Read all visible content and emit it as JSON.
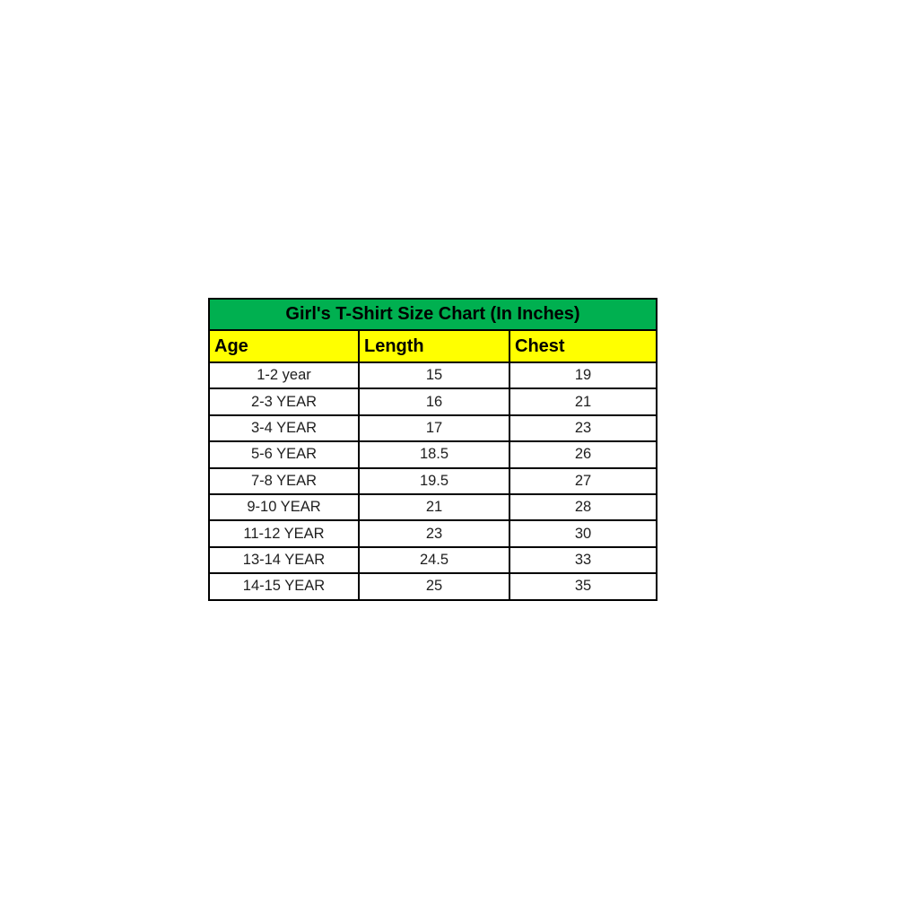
{
  "chart_data": {
    "type": "table",
    "title": "Girl's T-Shirt Size Chart (In Inches)",
    "columns": [
      "Age",
      "Length",
      "Chest"
    ],
    "rows": [
      [
        "1-2 year",
        "15",
        "19"
      ],
      [
        "2-3 YEAR",
        "16",
        "21"
      ],
      [
        "3-4 YEAR",
        "17",
        "23"
      ],
      [
        "5-6 YEAR",
        "18.5",
        "26"
      ],
      [
        "7-8 YEAR",
        "19.5",
        "27"
      ],
      [
        "9-10 YEAR",
        "21",
        "28"
      ],
      [
        "11-12 YEAR",
        "23",
        "30"
      ],
      [
        "13-14 YEAR",
        "24.5",
        "33"
      ],
      [
        "14-15 YEAR",
        "25",
        "35"
      ]
    ],
    "layout_hints": {
      "title_align": "center",
      "header_align": "left",
      "cell_align": "center",
      "grid": true
    }
  },
  "colors": {
    "title_bg": "#00b050",
    "header_bg": "#ffff00",
    "row_bg": "#ffffff",
    "border": "#000000",
    "text": "#000000",
    "page_bg": "#ffffff"
  }
}
